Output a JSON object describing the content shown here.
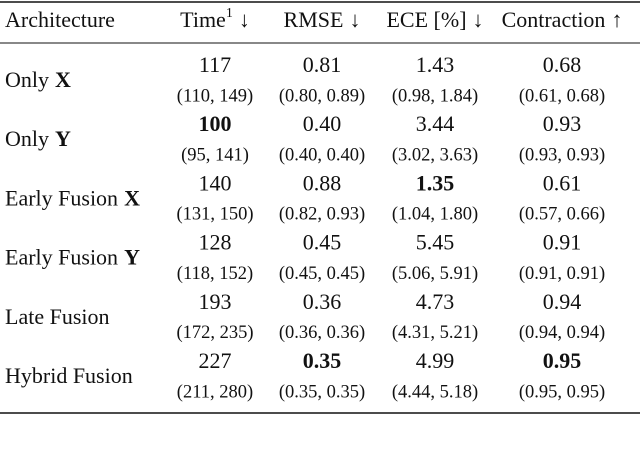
{
  "table": {
    "headers": [
      {
        "text": "Architecture"
      },
      {
        "text": "Time",
        "sup": "1",
        "arrow": "↓"
      },
      {
        "text": "RMSE",
        "arrow": "↓"
      },
      {
        "text": "ECE [%]",
        "arrow": "↓"
      },
      {
        "text": "Contraction",
        "arrow": "↑"
      }
    ],
    "rows": [
      {
        "label": {
          "text": "Only",
          "bold": "X"
        },
        "values": [
          "117",
          "0.81",
          "1.43",
          "0.68"
        ],
        "intervals": [
          "(110, 149)",
          "(0.80, 0.89)",
          "(0.98, 1.84)",
          "(0.61, 0.68)"
        ],
        "best": []
      },
      {
        "label": {
          "text": "Only",
          "bold": "Y"
        },
        "values": [
          "100",
          "0.40",
          "3.44",
          "0.93"
        ],
        "intervals": [
          "(95, 141)",
          "(0.40, 0.40)",
          "(3.02, 3.63)",
          "(0.93, 0.93)"
        ],
        "best": [
          0
        ]
      },
      {
        "label": {
          "text": "Early Fusion",
          "bold": "X"
        },
        "values": [
          "140",
          "0.88",
          "1.35",
          "0.61"
        ],
        "intervals": [
          "(131, 150)",
          "(0.82, 0.93)",
          "(1.04, 1.80)",
          "(0.57, 0.66)"
        ],
        "best": [
          2
        ]
      },
      {
        "label": {
          "text": "Early Fusion",
          "bold": "Y"
        },
        "values": [
          "128",
          "0.45",
          "5.45",
          "0.91"
        ],
        "intervals": [
          "(118, 152)",
          "(0.45, 0.45)",
          "(5.06, 5.91)",
          "(0.91, 0.91)"
        ],
        "best": []
      },
      {
        "label": {
          "text": "Late Fusion"
        },
        "values": [
          "193",
          "0.36",
          "4.73",
          "0.94"
        ],
        "intervals": [
          "(172, 235)",
          "(0.36, 0.36)",
          "(4.31, 5.21)",
          "(0.94, 0.94)"
        ],
        "best": []
      },
      {
        "label": {
          "text": "Hybrid Fusion"
        },
        "values": [
          "227",
          "0.35",
          "4.99",
          "0.95"
        ],
        "intervals": [
          "(211, 280)",
          "(0.35, 0.35)",
          "(4.44, 5.18)",
          "(0.95, 0.95)"
        ],
        "best": [
          1,
          3
        ]
      }
    ]
  }
}
